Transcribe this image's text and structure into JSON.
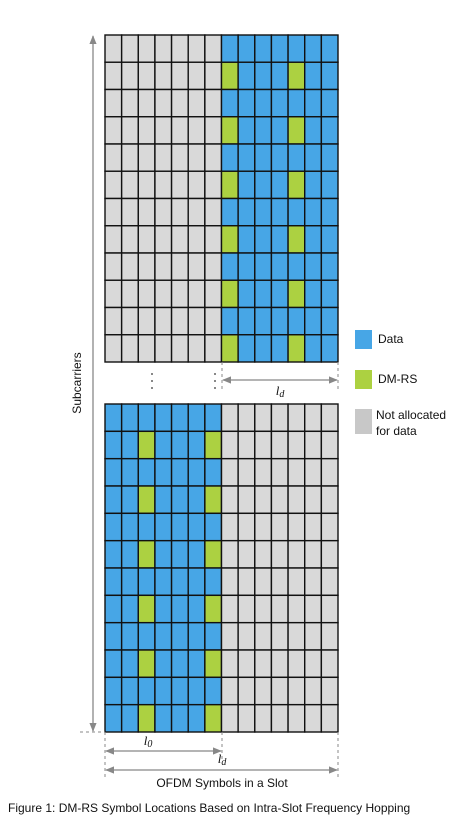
{
  "labels": {
    "y_axis": "Subcarriers",
    "x_axis": "OFDM Symbols in a Slot",
    "top_span": {
      "symbol": "l",
      "subscript": "d"
    },
    "bottom_span_first": {
      "symbol": "l",
      "subscript": "0"
    },
    "bottom_span_second": {
      "symbol": "l",
      "subscript": "d"
    }
  },
  "legend": {
    "items": [
      {
        "label": "Data"
      },
      {
        "label": "DM-RS"
      },
      {
        "label": [
          "Not allocated",
          "for data"
        ]
      }
    ]
  },
  "caption": "Figure 1: DM-RS Symbol Locations Based on Intra-Slot Frequency Hopping"
}
